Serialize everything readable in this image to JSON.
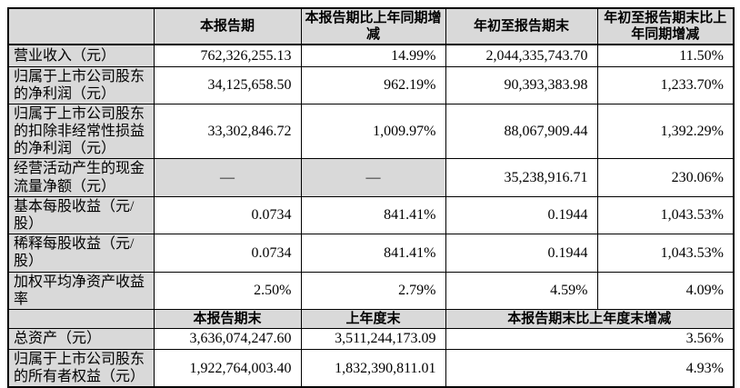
{
  "colors": {
    "shaded_cell": "#d9d9d9",
    "border": "#000000",
    "text": "#000000",
    "background": "#ffffff"
  },
  "section1": {
    "headers": {
      "corner": "",
      "col1": "本报告期",
      "col2": "本报告期比上年同期增减",
      "col3": "年初至报告期末",
      "col4": "年初至报告期末比上年同期增减"
    },
    "rows": [
      {
        "label": "营业收入（元）",
        "v1": "762,326,255.13",
        "v2": "14.99%",
        "v3": "2,044,335,743.70",
        "v4": "11.50%"
      },
      {
        "label": "归属于上市公司股东的净利润（元）",
        "v1": "34,125,658.50",
        "v2": "962.19%",
        "v3": "90,393,383.98",
        "v4": "1,233.70%"
      },
      {
        "label": "归属于上市公司股东的扣除非经常性损益的净利润（元）",
        "v1": "33,302,846.72",
        "v2": "1,009.97%",
        "v3": "88,067,909.44",
        "v4": "1,392.29%"
      },
      {
        "label": "经营活动产生的现金流量净额（元）",
        "v1": "—",
        "v2": "—",
        "v3": "35,238,916.71",
        "v4": "230.06%"
      },
      {
        "label": "基本每股收益（元/股）",
        "v1": "0.0734",
        "v2": "841.41%",
        "v3": "0.1944",
        "v4": "1,043.53%"
      },
      {
        "label": "稀释每股收益（元/股）",
        "v1": "0.0734",
        "v2": "841.41%",
        "v3": "0.1944",
        "v4": "1,043.53%"
      },
      {
        "label": "加权平均净资产收益率",
        "v1": "2.50%",
        "v2": "2.79%",
        "v3": "4.59%",
        "v4": "4.09%"
      }
    ]
  },
  "section2": {
    "headers": {
      "corner": "",
      "col1": "本报告期末",
      "col2": "上年度末",
      "col3": "本报告期末比上年度末增减"
    },
    "rows": [
      {
        "label": "总资产（元）",
        "v1": "3,636,074,247.60",
        "v2": "3,511,244,173.09",
        "v3": "3.56%"
      },
      {
        "label": "归属于上市公司股东的所有者权益（元）",
        "v1": "1,922,764,003.40",
        "v2": "1,832,390,811.01",
        "v3": "4.93%"
      }
    ]
  }
}
